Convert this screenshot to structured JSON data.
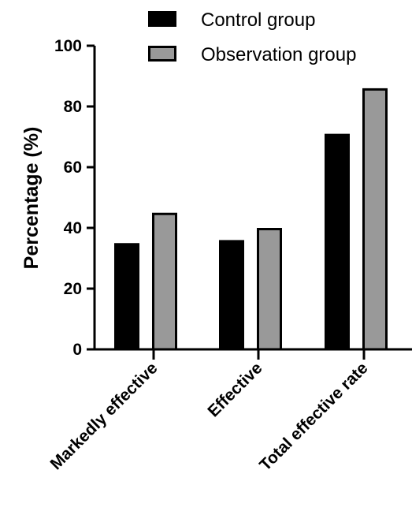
{
  "chart_data": {
    "type": "bar",
    "categories": [
      "Markedly effective",
      "Effective",
      "Total effective rate"
    ],
    "series": [
      {
        "name": "Control group",
        "values": [
          35,
          36,
          71
        ],
        "color": "#000000"
      },
      {
        "name": "Observation group",
        "values": [
          45,
          40,
          86
        ],
        "color": "#999999"
      }
    ],
    "ylabel": "Percentage (%)",
    "ylim": [
      0,
      100
    ],
    "yticks": [
      "0",
      "20",
      "40",
      "60",
      "80",
      "100"
    ],
    "grid": false,
    "legend_position": "top-right"
  }
}
